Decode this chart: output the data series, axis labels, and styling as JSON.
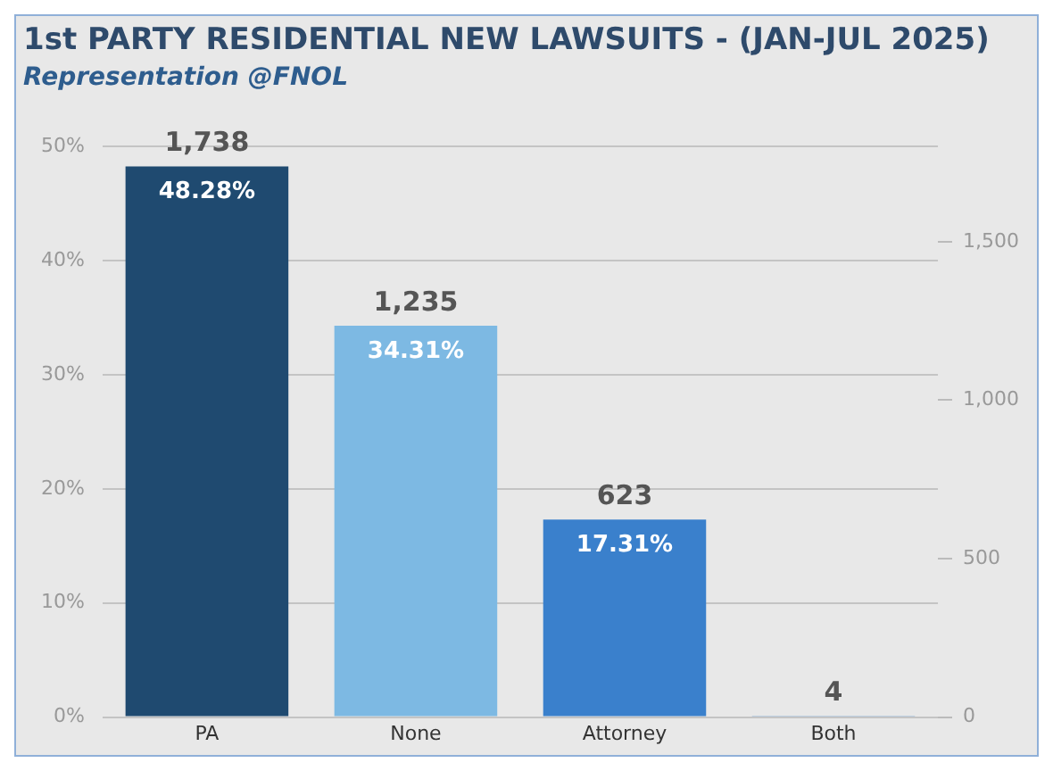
{
  "chart_data": {
    "type": "bar",
    "title": "1st PARTY RESIDENTIAL NEW LAWSUITS - (JAN-JUL 2025)",
    "subtitle": "Representation @FNOL",
    "categories": [
      "PA",
      "None",
      "Attorney",
      "Both"
    ],
    "series": [
      {
        "axis": "y2",
        "values": [
          1738,
          1235,
          623,
          4
        ],
        "colors": [
          "#1f4a70",
          "#7db9e3",
          "#3a80cc",
          "#3a80cc"
        ],
        "value_labels": [
          "1,738",
          "1,235",
          "623",
          "4"
        ]
      }
    ],
    "annotations": [
      {
        "text": "48.28%",
        "x": "PA",
        "y": 48.28
      },
      {
        "text": "34.31%",
        "x": "None",
        "y": 34.31
      },
      {
        "text": "17.31%",
        "x": "Attorney",
        "y": 17.31
      }
    ],
    "ylim": [
      0,
      50
    ],
    "yticks": [
      {
        "value": 0,
        "label": "0%"
      },
      {
        "value": 10,
        "label": "10%"
      },
      {
        "value": 20,
        "label": "20%"
      },
      {
        "value": 30,
        "label": "30%"
      },
      {
        "value": 40,
        "label": "40%"
      },
      {
        "value": 50,
        "label": "50%"
      }
    ],
    "y2lim": [
      0,
      1800
    ],
    "y2ticks": [
      0,
      500,
      {
        "value": 1000,
        "label": "1,000"
      },
      {
        "value": 1500,
        "label": "1,500"
      }
    ],
    "grid": "y",
    "legend": false
  }
}
